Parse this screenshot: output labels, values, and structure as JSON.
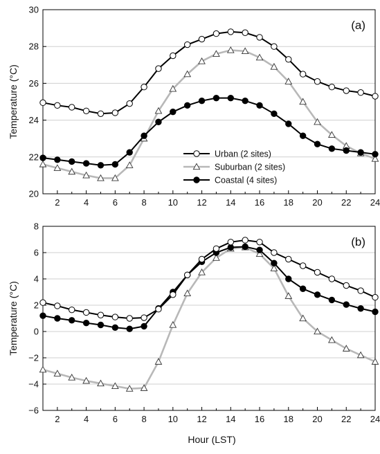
{
  "figure": {
    "xlabel": "Hour (LST)"
  },
  "chart_data": [
    {
      "type": "line",
      "panel_label": "(a)",
      "title": "",
      "xlabel": "",
      "ylabel": "Temperature (°C)",
      "xlim": [
        1,
        24
      ],
      "ylim": [
        20,
        30
      ],
      "x_ticks": [
        2,
        4,
        6,
        8,
        10,
        12,
        14,
        16,
        18,
        20,
        22,
        24
      ],
      "y_ticks": [
        20,
        22,
        24,
        26,
        28,
        30
      ],
      "grid": "horizontal",
      "legend": "center",
      "x": [
        1,
        2,
        3,
        4,
        5,
        6,
        7,
        8,
        9,
        10,
        11,
        12,
        13,
        14,
        15,
        16,
        17,
        18,
        19,
        20,
        21,
        22,
        23,
        24
      ],
      "series": [
        {
          "name": "Urban (2 sites)",
          "marker": "open-circle",
          "color": "#000000",
          "values": [
            24.95,
            24.8,
            24.7,
            24.5,
            24.35,
            24.4,
            24.9,
            25.8,
            26.8,
            27.5,
            28.1,
            28.4,
            28.7,
            28.8,
            28.75,
            28.5,
            28.0,
            27.3,
            26.5,
            26.1,
            25.8,
            25.6,
            25.5,
            25.3
          ]
        },
        {
          "name": "Suburban (2 sites)",
          "marker": "open-triangle",
          "color": "#b5b5b5",
          "values": [
            21.6,
            21.4,
            21.2,
            21.0,
            20.85,
            20.85,
            21.55,
            23.0,
            24.5,
            25.7,
            26.5,
            27.2,
            27.6,
            27.8,
            27.75,
            27.4,
            26.9,
            26.1,
            25.0,
            23.9,
            23.2,
            22.6,
            22.2,
            21.9
          ]
        },
        {
          "name": "Coastal (4 sites)",
          "marker": "filled-circle",
          "color": "#000000",
          "values": [
            21.95,
            21.85,
            21.75,
            21.65,
            21.55,
            21.6,
            22.25,
            23.15,
            23.9,
            24.45,
            24.8,
            25.05,
            25.2,
            25.2,
            25.05,
            24.8,
            24.35,
            23.8,
            23.15,
            22.7,
            22.45,
            22.35,
            22.25,
            22.15
          ]
        }
      ]
    },
    {
      "type": "line",
      "panel_label": "(b)",
      "title": "",
      "xlabel": "Hour (LST)",
      "ylabel": "Temperature (°C)",
      "xlim": [
        1,
        24
      ],
      "ylim": [
        -6,
        8
      ],
      "x_ticks": [
        2,
        4,
        6,
        8,
        10,
        12,
        14,
        16,
        18,
        20,
        22,
        24
      ],
      "y_ticks": [
        -6,
        -4,
        -2,
        0,
        2,
        4,
        6,
        8
      ],
      "grid": "horizontal",
      "legend": "none",
      "x": [
        1,
        2,
        3,
        4,
        5,
        6,
        7,
        8,
        9,
        10,
        11,
        12,
        13,
        14,
        15,
        16,
        17,
        18,
        19,
        20,
        21,
        22,
        23,
        24
      ],
      "series": [
        {
          "name": "Urban (2 sites)",
          "marker": "open-circle",
          "color": "#000000",
          "values": [
            2.2,
            1.95,
            1.65,
            1.45,
            1.25,
            1.1,
            1.0,
            1.05,
            1.7,
            2.8,
            4.3,
            5.5,
            6.3,
            6.8,
            6.95,
            6.8,
            6.0,
            5.5,
            5.0,
            4.5,
            4.0,
            3.5,
            3.1,
            2.6
          ]
        },
        {
          "name": "Suburban (2 sites)",
          "marker": "open-triangle",
          "color": "#b5b5b5",
          "values": [
            -2.9,
            -3.2,
            -3.5,
            -3.75,
            -3.95,
            -4.15,
            -4.35,
            -4.3,
            -2.3,
            0.5,
            2.9,
            4.5,
            5.6,
            6.3,
            6.4,
            5.9,
            4.8,
            2.7,
            1.0,
            0.0,
            -0.65,
            -1.3,
            -1.8,
            -2.3
          ]
        },
        {
          "name": "Coastal (4 sites)",
          "marker": "filled-circle",
          "color": "#000000",
          "values": [
            1.2,
            1.0,
            0.85,
            0.65,
            0.5,
            0.3,
            0.2,
            0.4,
            1.75,
            3.0,
            4.3,
            5.3,
            6.0,
            6.4,
            6.45,
            6.2,
            5.2,
            4.0,
            3.25,
            2.8,
            2.4,
            2.05,
            1.75,
            1.5
          ]
        }
      ]
    }
  ]
}
